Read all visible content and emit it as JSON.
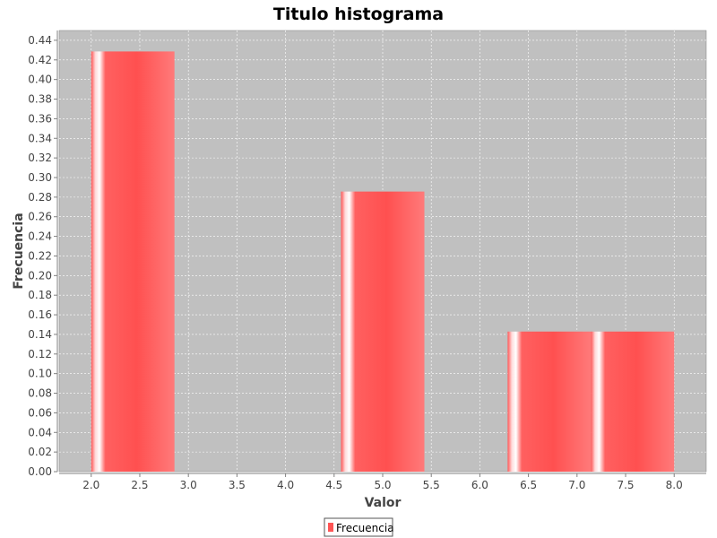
{
  "chart_data": {
    "type": "bar",
    "title": "Titulo histograma",
    "xlabel": "Valor",
    "ylabel": "Frecuencia",
    "xlim": [
      1.67,
      8.33
    ],
    "ylim": [
      0,
      0.45
    ],
    "xticks": [
      "2.0",
      "2.5",
      "3.0",
      "3.5",
      "4.0",
      "4.5",
      "5.0",
      "5.5",
      "6.0",
      "6.5",
      "7.0",
      "7.5",
      "8.0"
    ],
    "yticks": [
      "0.00",
      "0.02",
      "0.04",
      "0.06",
      "0.08",
      "0.10",
      "0.12",
      "0.14",
      "0.16",
      "0.18",
      "0.20",
      "0.22",
      "0.24",
      "0.26",
      "0.28",
      "0.30",
      "0.32",
      "0.34",
      "0.36",
      "0.38",
      "0.40",
      "0.42",
      "0.44"
    ],
    "series": [
      {
        "name": "Frecuencia",
        "bins": [
          {
            "start": 2.0,
            "end": 2.857,
            "value": 0.4286
          },
          {
            "start": 2.857,
            "end": 3.714,
            "value": 0
          },
          {
            "start": 3.714,
            "end": 4.571,
            "value": 0
          },
          {
            "start": 4.571,
            "end": 5.429,
            "value": 0.2857
          },
          {
            "start": 5.429,
            "end": 6.286,
            "value": 0
          },
          {
            "start": 6.286,
            "end": 7.143,
            "value": 0.1429
          },
          {
            "start": 7.143,
            "end": 8.0,
            "value": 0.1429
          }
        ]
      }
    ],
    "grid": true,
    "legend": "bottom-center",
    "colors": {
      "bar": "#ff5555",
      "plot_bg": "#c0c0c0",
      "grid": "#ffffff"
    }
  }
}
